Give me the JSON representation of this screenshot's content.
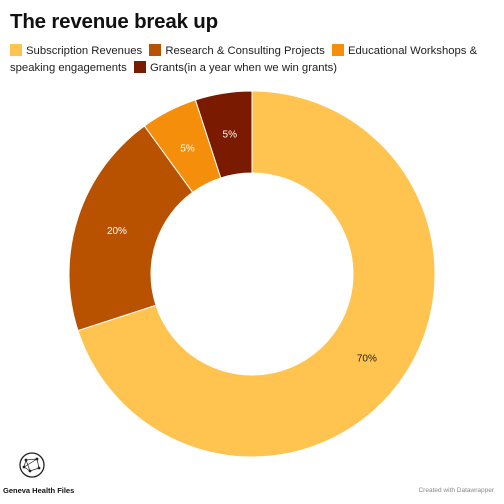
{
  "chart_data": {
    "type": "pie",
    "title": "The revenue break up",
    "donut": true,
    "categories": [
      "Subscription Revenues",
      "Research & Consulting Projects",
      "Educational Workshops & speaking engagements",
      "Grants(in a year when we win grants)"
    ],
    "values": [
      70,
      20,
      5,
      5
    ],
    "value_labels": [
      "70%",
      "20%",
      "5%",
      "5%"
    ],
    "colors": [
      "#fec44f",
      "#b85200",
      "#f58e0b",
      "#7a1a00"
    ],
    "label_colors": [
      "#1a1a1a",
      "#ffffff",
      "#ffffff",
      "#ffffff"
    ],
    "legend_position": "top-left"
  },
  "branding": {
    "logo_text": "Geneva Health Files",
    "credit": "Created with Datawrapper"
  }
}
